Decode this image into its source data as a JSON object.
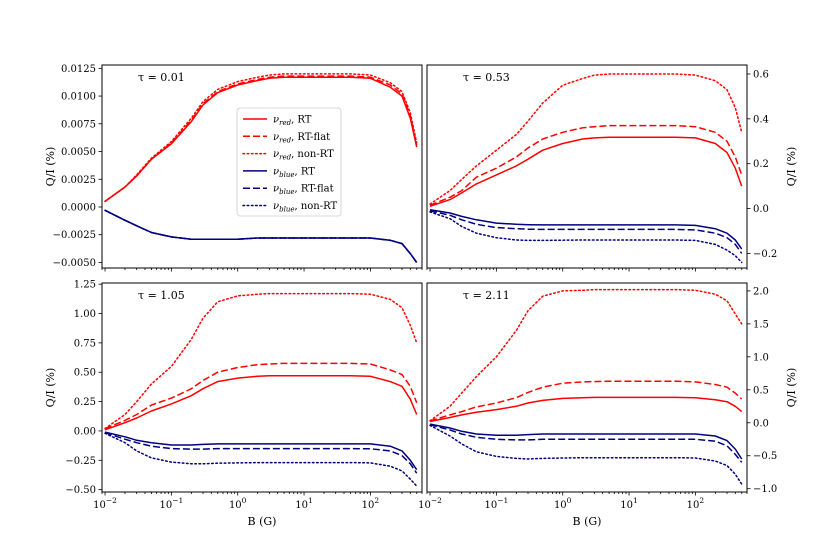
{
  "chart_data": {
    "type": "line",
    "layout": "2x2 grid, shared x axis",
    "xlabel": "B (G)",
    "xscale": "log",
    "xlim": [
      0.009,
      600
    ],
    "x": [
      0.01,
      0.02,
      0.03,
      0.05,
      0.1,
      0.2,
      0.3,
      0.5,
      1,
      2,
      3,
      5,
      10,
      20,
      30,
      50,
      100,
      200,
      300,
      400,
      500
    ],
    "x_ticks": [
      {
        "value": 0.01,
        "base": "10",
        "exp": "−2"
      },
      {
        "value": 0.1,
        "base": "10",
        "exp": "−1"
      },
      {
        "value": 1,
        "base": "10",
        "exp": "0"
      },
      {
        "value": 10,
        "base": "10",
        "exp": "1"
      },
      {
        "value": 100,
        "base": "10",
        "exp": "2"
      }
    ],
    "legend": {
      "placement": "left panel, center",
      "entries": [
        {
          "sub": "red",
          "suffix": ", RT",
          "color": "#ff0000",
          "dash": "solid"
        },
        {
          "sub": "red",
          "suffix": ", RT-flat",
          "color": "#ff0000",
          "dash": "dashed"
        },
        {
          "sub": "red",
          "suffix": ", non-RT",
          "color": "#ff0000",
          "dash": "dotted"
        },
        {
          "sub": "blue",
          "suffix": ", RT",
          "color": "#000080",
          "dash": "solid"
        },
        {
          "sub": "blue",
          "suffix": ", RT-flat",
          "color": "#000080",
          "dash": "dashed"
        },
        {
          "sub": "blue",
          "suffix": ", non-RT",
          "color": "#000080",
          "dash": "dotted"
        }
      ]
    },
    "panels": [
      {
        "tau_label": "τ = 0.01",
        "ylabel": "Q/I (%)",
        "yaxis_side": "left",
        "ylim": [
          -0.0055,
          0.0128
        ],
        "y_ticks": [
          "0.0125",
          "0.0100",
          "0.0075",
          "0.0050",
          "0.0025",
          "0.0000",
          "−0.0025",
          "−0.0050"
        ],
        "y_tick_values": [
          0.0125,
          0.01,
          0.0075,
          0.005,
          0.0025,
          0.0,
          -0.0025,
          -0.005
        ],
        "series": [
          {
            "name": "ν_red, RT",
            "color": "#ff0000",
            "dash": "solid",
            "values": [
              0.0005,
              0.0018,
              0.0028,
              0.0043,
              0.0057,
              0.0077,
              0.0092,
              0.0103,
              0.011,
              0.0114,
              0.0116,
              0.0117,
              0.0117,
              0.0117,
              0.0117,
              0.0117,
              0.0116,
              0.0108,
              0.01,
              0.008,
              0.0054
            ]
          },
          {
            "name": "ν_red, RT-flat",
            "color": "#ff0000",
            "dash": "dashed",
            "values": [
              0.0005,
              0.0018,
              0.0028,
              0.0043,
              0.0058,
              0.0078,
              0.0093,
              0.0104,
              0.0111,
              0.0115,
              0.0117,
              0.0118,
              0.0118,
              0.0118,
              0.0118,
              0.0118,
              0.0117,
              0.011,
              0.0102,
              0.0082,
              0.0056
            ]
          },
          {
            "name": "ν_red, non-RT",
            "color": "#ff0000",
            "dash": "dotted",
            "values": [
              0.0005,
              0.0018,
              0.0029,
              0.0044,
              0.0059,
              0.008,
              0.0095,
              0.0106,
              0.0113,
              0.0117,
              0.0119,
              0.012,
              0.012,
              0.012,
              0.012,
              0.012,
              0.0119,
              0.0112,
              0.0104,
              0.0085,
              0.0058
            ]
          },
          {
            "name": "ν_blue, RT",
            "color": "#000080",
            "dash": "solid",
            "values": [
              -0.0003,
              -0.0012,
              -0.0017,
              -0.0023,
              -0.0027,
              -0.0029,
              -0.0029,
              -0.0029,
              -0.0029,
              -0.0028,
              -0.0028,
              -0.0028,
              -0.0028,
              -0.0028,
              -0.0028,
              -0.0028,
              -0.0028,
              -0.003,
              -0.0033,
              -0.0042,
              -0.005
            ]
          },
          {
            "name": "ν_blue, RT-flat",
            "color": "#000080",
            "dash": "dashed",
            "values": [
              -0.0003,
              -0.0012,
              -0.0017,
              -0.0023,
              -0.0027,
              -0.0029,
              -0.0029,
              -0.0029,
              -0.0029,
              -0.0028,
              -0.0028,
              -0.0028,
              -0.0028,
              -0.0028,
              -0.0028,
              -0.0028,
              -0.0028,
              -0.003,
              -0.0033,
              -0.0042,
              -0.005
            ]
          },
          {
            "name": "ν_blue, non-RT",
            "color": "#000080",
            "dash": "dotted",
            "values": [
              -0.0003,
              -0.0012,
              -0.0017,
              -0.0023,
              -0.0027,
              -0.0029,
              -0.0029,
              -0.0029,
              -0.0029,
              -0.0028,
              -0.0028,
              -0.0028,
              -0.0028,
              -0.0028,
              -0.0028,
              -0.0028,
              -0.0028,
              -0.003,
              -0.0033,
              -0.0042,
              -0.005
            ]
          }
        ]
      },
      {
        "tau_label": "τ = 0.53",
        "ylabel": "Q/I (%)",
        "yaxis_side": "right",
        "ylim": [
          -0.265,
          0.64
        ],
        "y_ticks": [
          "0.6",
          "0.4",
          "0.2",
          "0.0",
          "−0.2"
        ],
        "y_tick_values": [
          0.6,
          0.4,
          0.2,
          0.0,
          -0.2
        ],
        "series": [
          {
            "name": "ν_red, RT",
            "color": "#ff0000",
            "dash": "solid",
            "values": [
              0.01,
              0.04,
              0.07,
              0.11,
              0.15,
              0.19,
              0.22,
              0.26,
              0.29,
              0.31,
              0.315,
              0.318,
              0.318,
              0.318,
              0.318,
              0.318,
              0.315,
              0.29,
              0.25,
              0.18,
              0.1
            ]
          },
          {
            "name": "ν_red, RT-flat",
            "color": "#ff0000",
            "dash": "dashed",
            "values": [
              0.015,
              0.05,
              0.08,
              0.14,
              0.18,
              0.23,
              0.27,
              0.31,
              0.34,
              0.36,
              0.365,
              0.37,
              0.37,
              0.37,
              0.37,
              0.37,
              0.365,
              0.34,
              0.3,
              0.23,
              0.15
            ]
          },
          {
            "name": "ν_red, non-RT",
            "color": "#ff0000",
            "dash": "dotted",
            "values": [
              0.02,
              0.08,
              0.13,
              0.19,
              0.26,
              0.33,
              0.39,
              0.47,
              0.55,
              0.58,
              0.595,
              0.6,
              0.6,
              0.6,
              0.6,
              0.6,
              0.595,
              0.57,
              0.53,
              0.45,
              0.34
            ]
          },
          {
            "name": "ν_blue, RT",
            "color": "#000080",
            "dash": "solid",
            "values": [
              -0.005,
              -0.02,
              -0.035,
              -0.05,
              -0.065,
              -0.07,
              -0.072,
              -0.073,
              -0.073,
              -0.073,
              -0.073,
              -0.073,
              -0.073,
              -0.073,
              -0.073,
              -0.073,
              -0.075,
              -0.09,
              -0.11,
              -0.14,
              -0.18
            ]
          },
          {
            "name": "ν_blue, RT-flat",
            "color": "#000080",
            "dash": "dashed",
            "values": [
              -0.01,
              -0.03,
              -0.05,
              -0.07,
              -0.085,
              -0.09,
              -0.092,
              -0.093,
              -0.093,
              -0.093,
              -0.093,
              -0.093,
              -0.093,
              -0.093,
              -0.093,
              -0.093,
              -0.095,
              -0.11,
              -0.13,
              -0.16,
              -0.2
            ]
          },
          {
            "name": "ν_blue, non-RT",
            "color": "#000080",
            "dash": "dotted",
            "values": [
              -0.015,
              -0.045,
              -0.08,
              -0.11,
              -0.13,
              -0.14,
              -0.142,
              -0.142,
              -0.141,
              -0.14,
              -0.14,
              -0.14,
              -0.14,
              -0.14,
              -0.14,
              -0.14,
              -0.142,
              -0.16,
              -0.185,
              -0.21,
              -0.24
            ]
          }
        ]
      },
      {
        "tau_label": "τ = 1.05",
        "ylabel": "Q/I (%)",
        "yaxis_side": "left",
        "ylim": [
          -0.52,
          1.26
        ],
        "y_ticks": [
          "1.25",
          "1.00",
          "0.75",
          "0.50",
          "0.25",
          "0.00",
          "−0.25",
          "−0.50"
        ],
        "y_tick_values": [
          1.25,
          1.0,
          0.75,
          0.5,
          0.25,
          0.0,
          -0.25,
          -0.5
        ],
        "series": [
          {
            "name": "ν_red, RT",
            "color": "#ff0000",
            "dash": "solid",
            "values": [
              0.01,
              0.07,
              0.11,
              0.17,
              0.23,
              0.3,
              0.36,
              0.42,
              0.45,
              0.465,
              0.47,
              0.47,
              0.47,
              0.47,
              0.47,
              0.47,
              0.465,
              0.42,
              0.38,
              0.27,
              0.14
            ]
          },
          {
            "name": "ν_red, RT-flat",
            "color": "#ff0000",
            "dash": "dashed",
            "values": [
              0.02,
              0.09,
              0.14,
              0.22,
              0.28,
              0.36,
              0.43,
              0.5,
              0.54,
              0.565,
              0.57,
              0.575,
              0.575,
              0.575,
              0.575,
              0.575,
              0.57,
              0.52,
              0.48,
              0.38,
              0.24
            ]
          },
          {
            "name": "ν_red, non-RT",
            "color": "#ff0000",
            "dash": "dotted",
            "values": [
              0.02,
              0.14,
              0.25,
              0.4,
              0.55,
              0.78,
              0.96,
              1.1,
              1.15,
              1.165,
              1.17,
              1.17,
              1.17,
              1.17,
              1.17,
              1.17,
              1.165,
              1.12,
              1.05,
              0.9,
              0.75
            ]
          },
          {
            "name": "ν_blue, RT",
            "color": "#000080",
            "dash": "solid",
            "values": [
              -0.01,
              -0.05,
              -0.08,
              -0.1,
              -0.12,
              -0.12,
              -0.115,
              -0.11,
              -0.11,
              -0.11,
              -0.11,
              -0.11,
              -0.11,
              -0.11,
              -0.11,
              -0.11,
              -0.11,
              -0.13,
              -0.17,
              -0.25,
              -0.33
            ]
          },
          {
            "name": "ν_blue, RT-flat",
            "color": "#000080",
            "dash": "dashed",
            "values": [
              -0.015,
              -0.07,
              -0.1,
              -0.13,
              -0.15,
              -0.155,
              -0.155,
              -0.15,
              -0.15,
              -0.15,
              -0.15,
              -0.15,
              -0.15,
              -0.15,
              -0.15,
              -0.15,
              -0.152,
              -0.17,
              -0.21,
              -0.28,
              -0.36
            ]
          },
          {
            "name": "ν_blue, non-RT",
            "color": "#000080",
            "dash": "dotted",
            "values": [
              -0.02,
              -0.1,
              -0.17,
              -0.23,
              -0.265,
              -0.28,
              -0.28,
              -0.275,
              -0.272,
              -0.27,
              -0.27,
              -0.27,
              -0.27,
              -0.27,
              -0.27,
              -0.27,
              -0.272,
              -0.3,
              -0.34,
              -0.41,
              -0.47
            ]
          }
        ]
      },
      {
        "tau_label": "τ = 2.11",
        "ylabel": "Q/I (%)",
        "yaxis_side": "right",
        "ylim": [
          -1.05,
          2.12
        ],
        "y_ticks": [
          "2.0",
          "1.5",
          "1.0",
          "0.5",
          "0.0",
          "−0.5",
          "−1.0"
        ],
        "y_tick_values": [
          2.0,
          1.5,
          1.0,
          0.5,
          0.0,
          -0.5,
          -1.0
        ],
        "series": [
          {
            "name": "ν_red, RT",
            "color": "#ff0000",
            "dash": "solid",
            "values": [
              0.02,
              0.08,
              0.12,
              0.16,
              0.2,
              0.25,
              0.3,
              0.34,
              0.37,
              0.38,
              0.385,
              0.385,
              0.385,
              0.385,
              0.385,
              0.385,
              0.38,
              0.35,
              0.32,
              0.25,
              0.17
            ]
          },
          {
            "name": "ν_red, RT-flat",
            "color": "#ff0000",
            "dash": "dashed",
            "values": [
              0.03,
              0.12,
              0.17,
              0.24,
              0.3,
              0.38,
              0.46,
              0.54,
              0.6,
              0.62,
              0.625,
              0.63,
              0.63,
              0.63,
              0.63,
              0.63,
              0.62,
              0.58,
              0.54,
              0.45,
              0.36
            ]
          },
          {
            "name": "ν_red, non-RT",
            "color": "#ff0000",
            "dash": "dotted",
            "values": [
              0.03,
              0.25,
              0.45,
              0.7,
              1.0,
              1.4,
              1.7,
              1.92,
              2.0,
              2.01,
              2.02,
              2.02,
              2.02,
              2.02,
              2.02,
              2.02,
              2.01,
              1.95,
              1.85,
              1.65,
              1.5
            ]
          },
          {
            "name": "ν_blue, RT",
            "color": "#000080",
            "dash": "solid",
            "values": [
              -0.02,
              -0.08,
              -0.13,
              -0.17,
              -0.19,
              -0.19,
              -0.18,
              -0.17,
              -0.17,
              -0.17,
              -0.17,
              -0.17,
              -0.17,
              -0.17,
              -0.17,
              -0.17,
              -0.17,
              -0.2,
              -0.27,
              -0.4,
              -0.55
            ]
          },
          {
            "name": "ν_blue, RT-flat",
            "color": "#000080",
            "dash": "dashed",
            "values": [
              -0.03,
              -0.11,
              -0.17,
              -0.22,
              -0.25,
              -0.26,
              -0.26,
              -0.25,
              -0.25,
              -0.25,
              -0.25,
              -0.25,
              -0.25,
              -0.25,
              -0.25,
              -0.25,
              -0.25,
              -0.28,
              -0.35,
              -0.48,
              -0.6
            ]
          },
          {
            "name": "ν_blue, non-RT",
            "color": "#000080",
            "dash": "dotted",
            "values": [
              -0.04,
              -0.2,
              -0.32,
              -0.44,
              -0.51,
              -0.54,
              -0.55,
              -0.54,
              -0.535,
              -0.53,
              -0.53,
              -0.53,
              -0.53,
              -0.53,
              -0.53,
              -0.53,
              -0.535,
              -0.58,
              -0.65,
              -0.78,
              -0.93
            ]
          }
        ]
      }
    ]
  }
}
